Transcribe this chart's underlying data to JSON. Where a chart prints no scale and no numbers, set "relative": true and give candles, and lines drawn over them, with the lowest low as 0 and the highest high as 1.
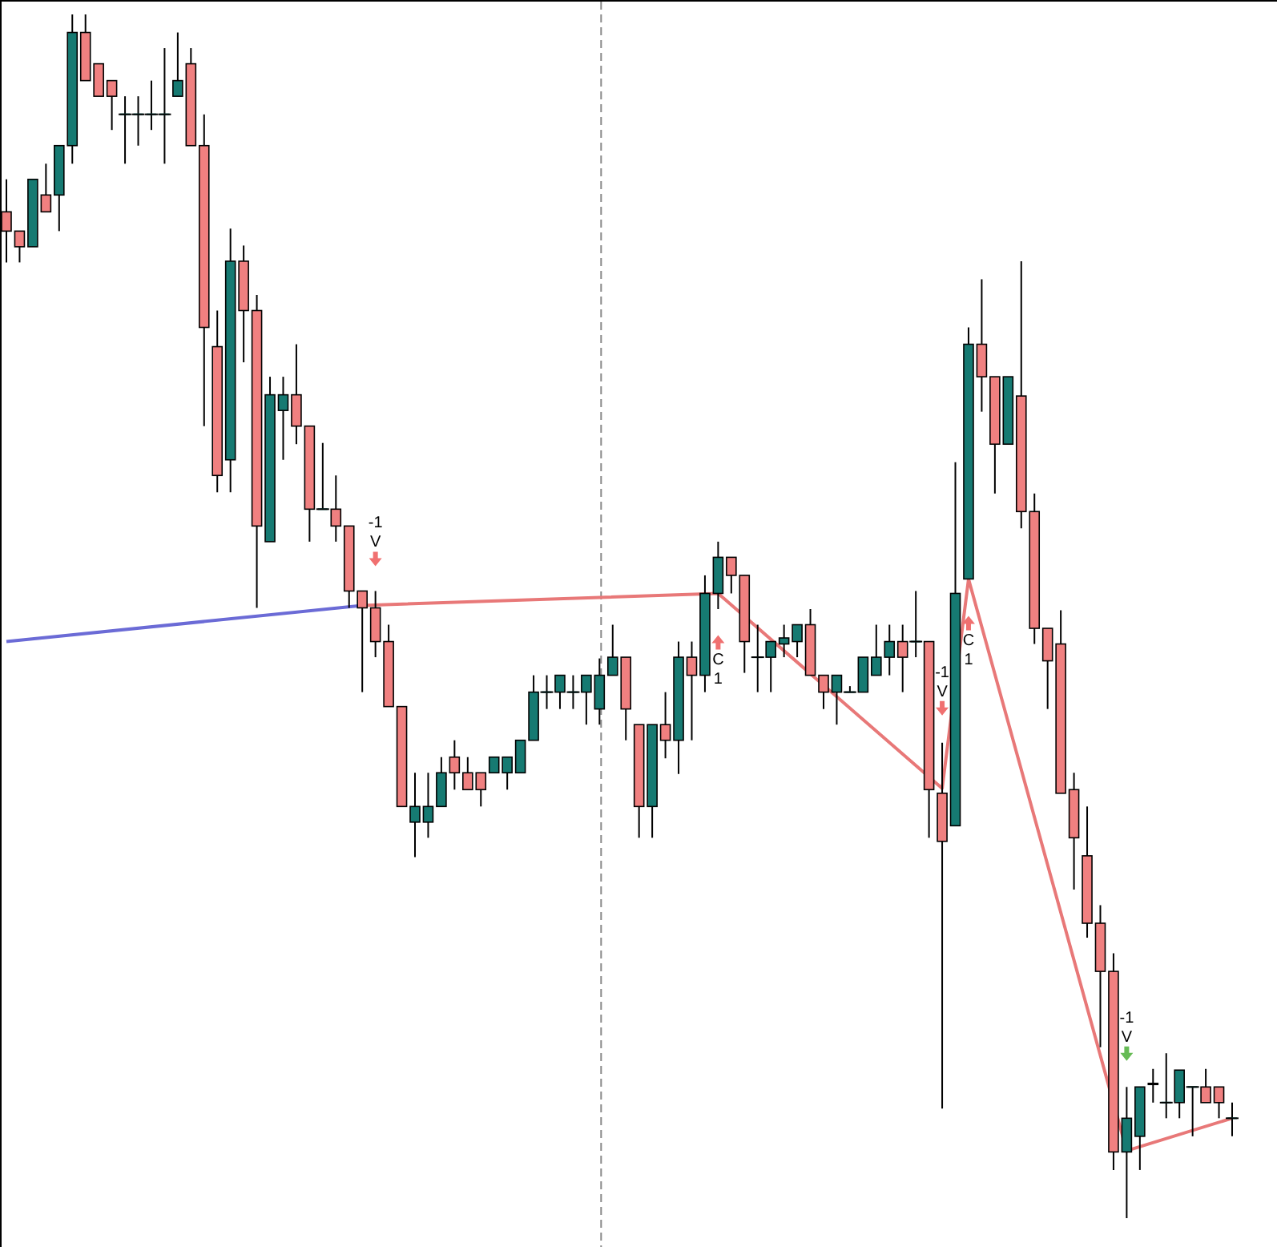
{
  "chart_data": {
    "type": "candlestick",
    "relative": true,
    "categories": [
      null,
      null,
      null,
      null,
      null,
      null,
      null,
      null,
      null,
      null,
      null,
      null,
      null,
      null,
      null,
      null,
      null,
      null,
      null,
      null,
      null,
      null,
      null,
      null,
      null,
      null,
      null,
      null,
      null,
      null,
      null,
      null,
      null,
      null,
      null,
      null,
      null,
      null,
      null,
      null,
      null,
      null,
      null,
      null,
      null,
      null,
      null,
      null,
      null,
      null,
      null,
      null,
      null,
      null,
      null,
      null,
      null,
      null,
      null,
      null,
      null,
      null,
      null,
      null,
      null,
      null,
      null,
      null,
      null,
      null,
      null,
      null,
      null,
      null,
      null,
      null,
      null,
      null,
      null,
      null,
      null,
      null,
      null,
      null,
      null,
      null,
      null,
      null,
      null,
      null,
      null,
      null,
      null,
      null
    ],
    "ohlc": [
      [
        0.836,
        0.863,
        0.794,
        0.82
      ],
      [
        0.82,
        0.82,
        0.794,
        0.807
      ],
      [
        0.807,
        0.863,
        0.807,
        0.863
      ],
      [
        0.85,
        0.876,
        0.836,
        0.836
      ],
      [
        0.85,
        0.891,
        0.82,
        0.891
      ],
      [
        0.891,
        1,
        0.876,
        0.985
      ],
      [
        0.985,
        1,
        0.945,
        0.945
      ],
      [
        0.959,
        0.959,
        0.932,
        0.932
      ],
      [
        0.945,
        0.945,
        0.904,
        0.932
      ],
      [
        0.917,
        0.932,
        0.876,
        0.917
      ],
      [
        0.917,
        0.932,
        0.891,
        0.917
      ],
      [
        0.917,
        0.945,
        0.904,
        0.917
      ],
      [
        0.917,
        0.972,
        0.876,
        0.917
      ],
      [
        0.932,
        0.985,
        0.932,
        0.945
      ],
      [
        0.959,
        0.972,
        0.891,
        0.891
      ],
      [
        0.891,
        0.917,
        0.658,
        0.74
      ],
      [
        0.724,
        0.754,
        0.603,
        0.617
      ],
      [
        0.63,
        0.822,
        0.603,
        0.795
      ],
      [
        0.795,
        0.808,
        0.711,
        0.754
      ],
      [
        0.754,
        0.767,
        0.507,
        0.575
      ],
      [
        0.562,
        0.699,
        0.562,
        0.684
      ],
      [
        0.671,
        0.699,
        0.63,
        0.684
      ],
      [
        0.684,
        0.726,
        0.643,
        0.658
      ],
      [
        0.658,
        0.658,
        0.562,
        0.589
      ],
      [
        0.589,
        0.644,
        0.589,
        0.589
      ],
      [
        0.589,
        0.617,
        0.562,
        0.575
      ],
      [
        0.575,
        0.575,
        0.507,
        0.521
      ],
      [
        0.521,
        0.521,
        0.437,
        0.507
      ],
      [
        0.507,
        0.521,
        0.466,
        0.479
      ],
      [
        0.479,
        0.493,
        0.425,
        0.425
      ],
      [
        0.425,
        0.425,
        0.342,
        0.342
      ],
      [
        0.329,
        0.37,
        0.3,
        0.342
      ],
      [
        0.329,
        0.37,
        0.316,
        0.342
      ],
      [
        0.342,
        0.383,
        0.342,
        0.37
      ],
      [
        0.383,
        0.397,
        0.356,
        0.37
      ],
      [
        0.37,
        0.383,
        0.356,
        0.356
      ],
      [
        0.37,
        0.37,
        0.342,
        0.356
      ],
      [
        0.37,
        0.383,
        0.37,
        0.383
      ],
      [
        0.37,
        0.383,
        0.356,
        0.383
      ],
      [
        0.37,
        0.397,
        0.37,
        0.397
      ],
      [
        0.397,
        0.451,
        0.397,
        0.437
      ],
      [
        0.437,
        0.451,
        0.423,
        0.437
      ],
      [
        0.437,
        0.451,
        0.423,
        0.451
      ],
      [
        0.437,
        0.451,
        0.423,
        0.437
      ],
      [
        0.437,
        0.451,
        0.41,
        0.451
      ],
      [
        0.423,
        0.465,
        0.41,
        0.451
      ],
      [
        0.451,
        0.493,
        0.451,
        0.466
      ],
      [
        0.466,
        0.466,
        0.397,
        0.423
      ],
      [
        0.41,
        0.41,
        0.316,
        0.342
      ],
      [
        0.342,
        0.41,
        0.316,
        0.41
      ],
      [
        0.41,
        0.437,
        0.382,
        0.397
      ],
      [
        0.397,
        0.479,
        0.369,
        0.466
      ],
      [
        0.466,
        0.479,
        0.397,
        0.451
      ],
      [
        0.451,
        0.534,
        0.437,
        0.519
      ],
      [
        0.519,
        0.562,
        0.506,
        0.549
      ],
      [
        0.549,
        0.549,
        0.519,
        0.534
      ],
      [
        0.534,
        0.534,
        0.453,
        0.479
      ],
      [
        0.466,
        0.493,
        0.437,
        0.466
      ],
      [
        0.466,
        0.479,
        0.437,
        0.479
      ],
      [
        0.477,
        0.493,
        0.466,
        0.482
      ],
      [
        0.479,
        0.493,
        0.466,
        0.493
      ],
      [
        0.493,
        0.506,
        0.451,
        0.451
      ],
      [
        0.451,
        0.451,
        0.423,
        0.437
      ],
      [
        0.437,
        0.451,
        0.41,
        0.451
      ],
      [
        0.437,
        0.442,
        0.437,
        0.437
      ],
      [
        0.437,
        0.466,
        0.437,
        0.466
      ],
      [
        0.451,
        0.493,
        0.451,
        0.466
      ],
      [
        0.466,
        0.493,
        0.451,
        0.479
      ],
      [
        0.479,
        0.493,
        0.437,
        0.466
      ],
      [
        0.479,
        0.521,
        0.466,
        0.479
      ],
      [
        0.479,
        0.479,
        0.316,
        0.356
      ],
      [
        0.353,
        0.395,
        0.091,
        0.313
      ],
      [
        0.326,
        0.628,
        0.326,
        0.519
      ],
      [
        0.531,
        0.74,
        0.531,
        0.726
      ],
      [
        0.726,
        0.78,
        0.67,
        0.699
      ],
      [
        0.699,
        0.699,
        0.602,
        0.643
      ],
      [
        0.643,
        0.699,
        0.643,
        0.699
      ],
      [
        0.683,
        0.795,
        0.573,
        0.587
      ],
      [
        0.587,
        0.602,
        0.477,
        0.49
      ],
      [
        0.49,
        0.49,
        0.423,
        0.463
      ],
      [
        0.477,
        0.505,
        0.353,
        0.353
      ],
      [
        0.356,
        0.37,
        0.273,
        0.316
      ],
      [
        0.301,
        0.342,
        0.233,
        0.245
      ],
      [
        0.245,
        0.26,
        0.142,
        0.205
      ],
      [
        0.205,
        0.22,
        0.04,
        0.055
      ],
      [
        0.055,
        0.109,
        0,
        0.083
      ],
      [
        0.068,
        0.109,
        0.04,
        0.109
      ],
      [
        0.111,
        0.124,
        0.096,
        0.112
      ],
      [
        0.096,
        0.137,
        0.083,
        0.096
      ],
      [
        0.096,
        0.123,
        0.083,
        0.123
      ],
      [
        0.109,
        0.109,
        0.068,
        0.109
      ],
      [
        0.109,
        0.124,
        0.096,
        0.096
      ],
      [
        0.109,
        0.109,
        0.083,
        0.096
      ],
      [
        0.083,
        0.096,
        0.068,
        0.083
      ]
    ],
    "colors": [
      "#f08080",
      "#f08080",
      "#167a72",
      "#f08080",
      "#167a72",
      "#167a72",
      "#f08080",
      "#f08080",
      "#f08080",
      "#167a72",
      "#167a72",
      "#167a72",
      "#167a72",
      "#167a72",
      "#f08080",
      "#f08080",
      "#f08080",
      "#167a72",
      "#f08080",
      "#f08080",
      "#167a72",
      "#167a72",
      "#f08080",
      "#f08080",
      "#167a72",
      "#f08080",
      "#f08080",
      "#f08080",
      "#f08080",
      "#f08080",
      "#f08080",
      "#167a72",
      "#167a72",
      "#167a72",
      "#f08080",
      "#f08080",
      "#f08080",
      "#167a72",
      "#167a72",
      "#167a72",
      "#167a72",
      "#167a72",
      "#167a72",
      "#167a72",
      "#167a72",
      "#167a72",
      "#167a72",
      "#f08080",
      "#f08080",
      "#167a72",
      "#f08080",
      "#167a72",
      "#f08080",
      "#167a72",
      "#167a72",
      "#f08080",
      "#f08080",
      "#167a72",
      "#167a72",
      "#167a72",
      "#167a72",
      "#f08080",
      "#f08080",
      "#167a72",
      "#167a72",
      "#167a72",
      "#167a72",
      "#167a72",
      "#f08080",
      "#167a72",
      "#f08080",
      "#f08080",
      "#167a72",
      "#167a72",
      "#f08080",
      "#f08080",
      "#167a72",
      "#f08080",
      "#f08080",
      "#f08080",
      "#f08080",
      "#f08080",
      "#f08080",
      "#f08080",
      "#f08080",
      "#167a72",
      "#167a72",
      "#f08080",
      "#167a72",
      "#167a72",
      "#167a72",
      "#f08080",
      "#f08080",
      "#167a72"
    ],
    "series": [
      {
        "type": "line",
        "color": "#6b6bd6",
        "values": [
          0.479,
          null,
          null,
          null,
          null,
          null,
          null,
          null,
          null,
          null,
          null,
          null,
          null,
          null,
          null,
          null,
          null,
          null,
          null,
          null,
          null,
          null,
          null,
          null,
          null,
          null,
          null,
          0.509,
          null,
          null,
          null,
          null,
          null,
          null,
          null,
          null,
          null,
          null,
          null,
          null,
          null,
          null,
          null,
          null,
          null,
          null,
          null,
          null,
          null,
          null,
          null,
          null,
          null,
          null,
          null,
          null,
          null,
          null,
          null,
          null,
          null,
          null,
          null,
          null,
          null,
          null,
          null,
          null,
          null,
          null,
          null,
          null,
          null,
          null,
          null,
          null,
          null,
          null,
          null,
          null,
          null,
          null,
          null,
          null,
          null,
          null,
          null,
          null,
          null,
          null,
          null,
          null,
          null,
          null
        ]
      },
      {
        "type": "line",
        "color": "#e87878",
        "values": [
          null,
          null,
          null,
          null,
          null,
          null,
          null,
          null,
          null,
          null,
          null,
          null,
          null,
          null,
          null,
          null,
          null,
          null,
          null,
          null,
          null,
          null,
          null,
          null,
          null,
          null,
          null,
          0.509,
          null,
          null,
          null,
          null,
          null,
          null,
          null,
          null,
          null,
          null,
          null,
          null,
          null,
          null,
          null,
          null,
          null,
          null,
          null,
          null,
          null,
          null,
          null,
          null,
          null,
          null,
          0.519,
          null,
          null,
          null,
          null,
          null,
          null,
          null,
          null,
          null,
          null,
          null,
          null,
          null,
          null,
          null,
          null,
          0.357,
          null,
          0.531,
          null,
          null,
          null,
          null,
          null,
          null,
          null,
          null,
          null,
          null,
          null,
          0.056,
          null,
          null,
          null,
          null,
          null,
          null,
          null,
          0.083
        ]
      },
      {
        "type": "scatter",
        "name": "-1 V",
        "marker": "triangle",
        "values": [
          null,
          null,
          null,
          null,
          null,
          null,
          null,
          null,
          null,
          null,
          null,
          null,
          null,
          null,
          null,
          null,
          null,
          null,
          null,
          null,
          null,
          null,
          null,
          null,
          null,
          null,
          null,
          null,
          0.547,
          null,
          null,
          null,
          null,
          null,
          null,
          null,
          null,
          null,
          null,
          null,
          null,
          null,
          null,
          null,
          null,
          null,
          null,
          null,
          null,
          null,
          null,
          null,
          null,
          null,
          null,
          null,
          null,
          null,
          null,
          null,
          null,
          null,
          null,
          null,
          null,
          null,
          null,
          null,
          null,
          null,
          null,
          0.423,
          null,
          null,
          null,
          null,
          null,
          null,
          null,
          null,
          null,
          null,
          null,
          null,
          null,
          0.136,
          null,
          null,
          null,
          null,
          null,
          null,
          null,
          null
        ],
        "colors": [
          null,
          null,
          null,
          null,
          null,
          null,
          null,
          null,
          null,
          null,
          null,
          null,
          null,
          null,
          null,
          null,
          null,
          null,
          null,
          null,
          null,
          null,
          null,
          null,
          null,
          null,
          null,
          null,
          "#f07070",
          null,
          null,
          null,
          null,
          null,
          null,
          null,
          null,
          null,
          null,
          null,
          null,
          null,
          null,
          null,
          null,
          null,
          null,
          null,
          null,
          null,
          null,
          null,
          null,
          null,
          null,
          null,
          null,
          null,
          null,
          null,
          null,
          null,
          null,
          null,
          null,
          null,
          null,
          null,
          null,
          null,
          null,
          "#f07070",
          null,
          null,
          null,
          null,
          null,
          null,
          null,
          null,
          null,
          null,
          null,
          null,
          null,
          "#66bb55",
          null,
          null,
          null,
          null,
          null,
          null,
          null,
          null
        ]
      },
      {
        "type": "scatter",
        "name": "C 1",
        "marker": "triangle",
        "values": [
          null,
          null,
          null,
          null,
          null,
          null,
          null,
          null,
          null,
          null,
          null,
          null,
          null,
          null,
          null,
          null,
          null,
          null,
          null,
          null,
          null,
          null,
          null,
          null,
          null,
          null,
          null,
          null,
          null,
          null,
          null,
          null,
          null,
          null,
          null,
          null,
          null,
          null,
          null,
          null,
          null,
          null,
          null,
          null,
          null,
          null,
          null,
          null,
          null,
          null,
          null,
          null,
          null,
          null,
          0.479,
          null,
          null,
          null,
          null,
          null,
          null,
          null,
          null,
          null,
          null,
          null,
          null,
          null,
          null,
          null,
          null,
          null,
          null,
          0.495,
          null,
          null,
          null,
          null,
          null,
          null,
          null,
          null,
          null,
          null,
          null,
          null,
          null,
          null,
          null,
          null,
          null,
          null,
          null,
          null
        ],
        "colors": [
          null,
          null,
          null,
          null,
          null,
          null,
          null,
          null,
          null,
          null,
          null,
          null,
          null,
          null,
          null,
          null,
          null,
          null,
          null,
          null,
          null,
          null,
          null,
          null,
          null,
          null,
          null,
          null,
          null,
          null,
          null,
          null,
          null,
          null,
          null,
          null,
          null,
          null,
          null,
          null,
          null,
          null,
          null,
          null,
          null,
          null,
          null,
          null,
          null,
          null,
          null,
          null,
          null,
          null,
          "#f07070",
          null,
          null,
          null,
          null,
          null,
          null,
          null,
          null,
          null,
          null,
          null,
          null,
          null,
          null,
          null,
          null,
          null,
          null,
          "#f07070",
          null,
          null,
          null,
          null,
          null,
          null,
          null,
          null,
          null,
          null,
          null,
          null,
          null,
          null,
          null,
          null,
          null,
          null,
          null,
          null
        ]
      }
    ]
  }
}
